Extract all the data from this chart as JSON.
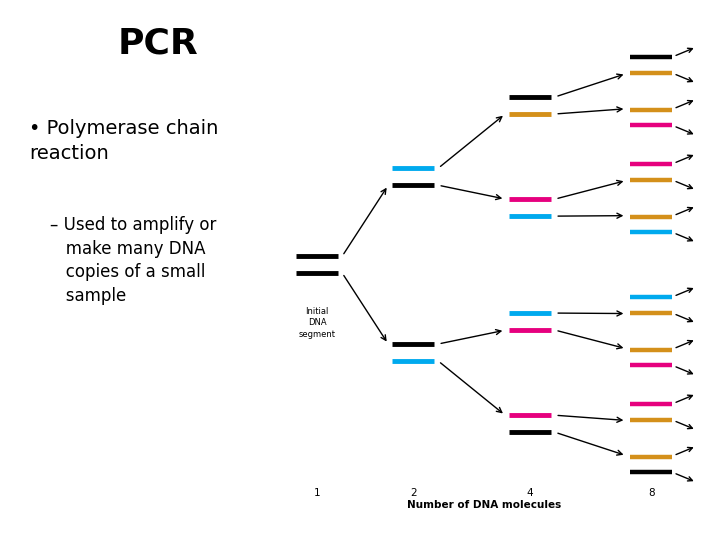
{
  "title": "PCR",
  "bullet1": "Polymerase chain\nreaction",
  "bullet2": "– Used to amplify or\n   make many DNA\n   copies of a small\n   sample",
  "bg_color": "#ffffff",
  "title_fontsize": 26,
  "text_fontsize": 14,
  "sub_fontsize": 12,
  "colors": {
    "black": "#000000",
    "cyan": "#00aaee",
    "magenta": "#e6007e",
    "gold": "#d4901a",
    "white": "#ffffff"
  },
  "xlabel": "Number of DNA molecules",
  "initial_label": "Initial\nDNA\nsegment"
}
